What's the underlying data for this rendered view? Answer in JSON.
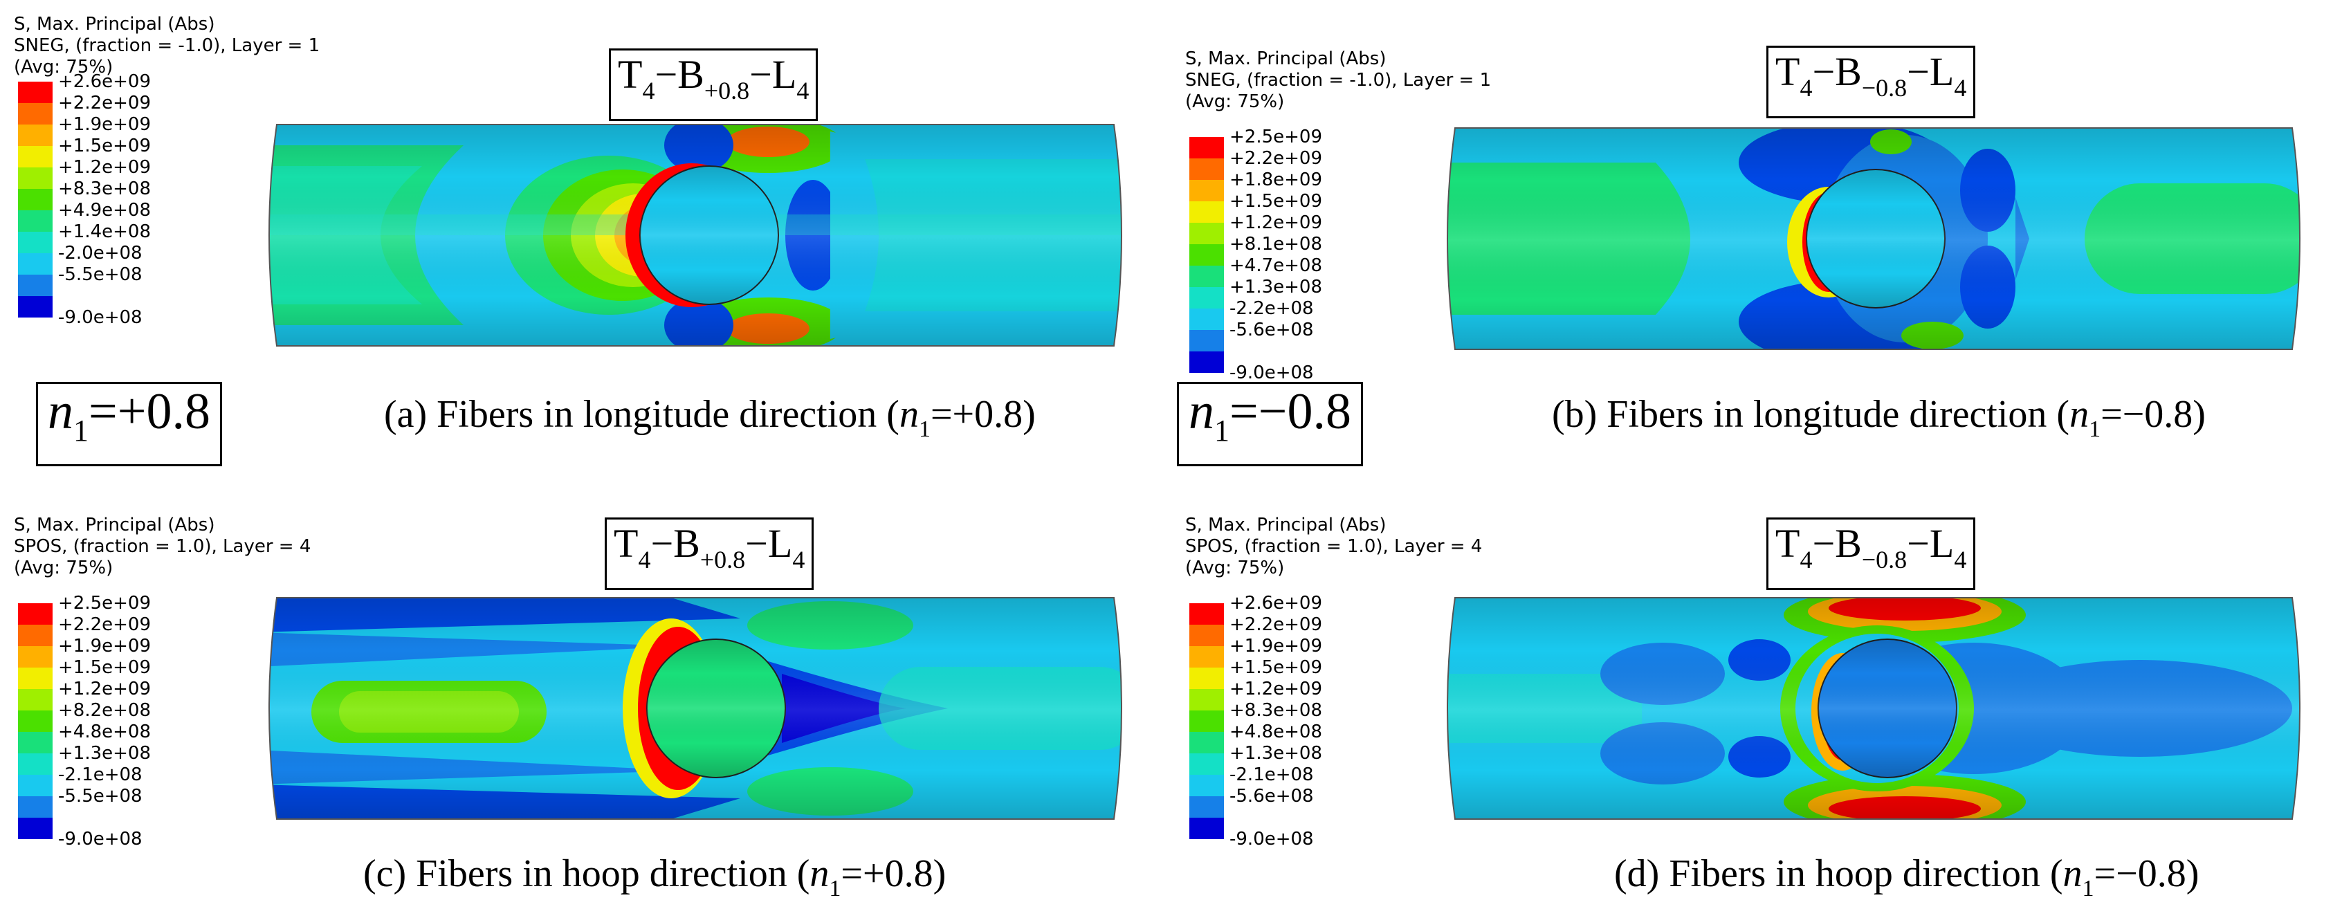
{
  "colormap": [
    "#ff0000",
    "#ff6a00",
    "#ffb000",
    "#f2ee00",
    "#9fef00",
    "#4be000",
    "#19e07a",
    "#14e0c6",
    "#19c9ef",
    "#1680e8",
    "#0048e6",
    "#0000d6"
  ],
  "panels": [
    {
      "id": "a",
      "legend": {
        "line1": "S, Max. Principal (Abs)",
        "line2": "SNEG, (fraction = -1.0), Layer = 1",
        "line3": "(Avg: 75%)",
        "values": [
          "+2.6e+09",
          "+2.2e+09",
          "+1.9e+09",
          "+1.5e+09",
          "+1.2e+09",
          "+8.3e+08",
          "+4.9e+08",
          "+1.4e+08",
          "-2.0e+08",
          "-5.5e+08",
          "-9.0e+08"
        ]
      },
      "title": {
        "t": "T",
        "t_sub": "4",
        "b": "B",
        "b_sub": "+0.8",
        "l": "L",
        "l_sub": "4",
        "dash": "−"
      },
      "caption": {
        "text": "(a) Fibers in longitude direction (",
        "var": "n",
        "var_sub": "1",
        "value": "=+0.8)"
      }
    },
    {
      "id": "b",
      "legend": {
        "line1": "S, Max. Principal (Abs)",
        "line2": "SNEG, (fraction = -1.0), Layer = 1",
        "line3": "(Avg: 75%)",
        "values": [
          "+2.5e+09",
          "+2.2e+09",
          "+1.8e+09",
          "+1.5e+09",
          "+1.2e+09",
          "+8.1e+08",
          "+4.7e+08",
          "+1.3e+08",
          "-2.2e+08",
          "-5.6e+08",
          "-9.0e+08"
        ]
      },
      "title": {
        "t": "T",
        "t_sub": "4",
        "b": "B",
        "b_sub": "−0.8",
        "l": "L",
        "l_sub": "4",
        "dash": "−"
      },
      "caption": {
        "text": "(b) Fibers in longitude direction (",
        "var": "n",
        "var_sub": "1",
        "value": "=−0.8)"
      }
    },
    {
      "id": "c",
      "legend": {
        "line1": "S, Max. Principal (Abs)",
        "line2": "SPOS, (fraction = 1.0), Layer = 4",
        "line3": "(Avg: 75%)",
        "values": [
          "+2.5e+09",
          "+2.2e+09",
          "+1.9e+09",
          "+1.5e+09",
          "+1.2e+09",
          "+8.2e+08",
          "+4.8e+08",
          "+1.3e+08",
          "-2.1e+08",
          "-5.5e+08",
          "-9.0e+08"
        ]
      },
      "title": {
        "t": "T",
        "t_sub": "4",
        "b": "B",
        "b_sub": "+0.8",
        "l": "L",
        "l_sub": "4",
        "dash": "−"
      },
      "caption": {
        "text": "(c) Fibers in hoop direction (",
        "var": "n",
        "var_sub": "1",
        "value": "=+0.8)"
      }
    },
    {
      "id": "d",
      "legend": {
        "line1": "S, Max. Principal (Abs)",
        "line2": "SPOS, (fraction = 1.0), Layer = 4",
        "line3": "(Avg: 75%)",
        "values": [
          "+2.6e+09",
          "+2.2e+09",
          "+1.9e+09",
          "+1.5e+09",
          "+1.2e+09",
          "+8.3e+08",
          "+4.8e+08",
          "+1.3e+08",
          "-2.1e+08",
          "-5.6e+08",
          "-9.0e+08"
        ]
      },
      "title": {
        "t": "T",
        "t_sub": "4",
        "b": "B",
        "b_sub": "−0.8",
        "l": "L",
        "l_sub": "4",
        "dash": "−"
      },
      "caption": {
        "text": "(d) Fibers in hoop direction (",
        "var": "n",
        "var_sub": "1",
        "value": "=−0.8)"
      }
    }
  ],
  "group_labels": [
    {
      "var": "n",
      "var_sub": "1",
      "value": "=+0.8"
    },
    {
      "var": "n",
      "var_sub": "1",
      "value": "=−0.8"
    }
  ]
}
